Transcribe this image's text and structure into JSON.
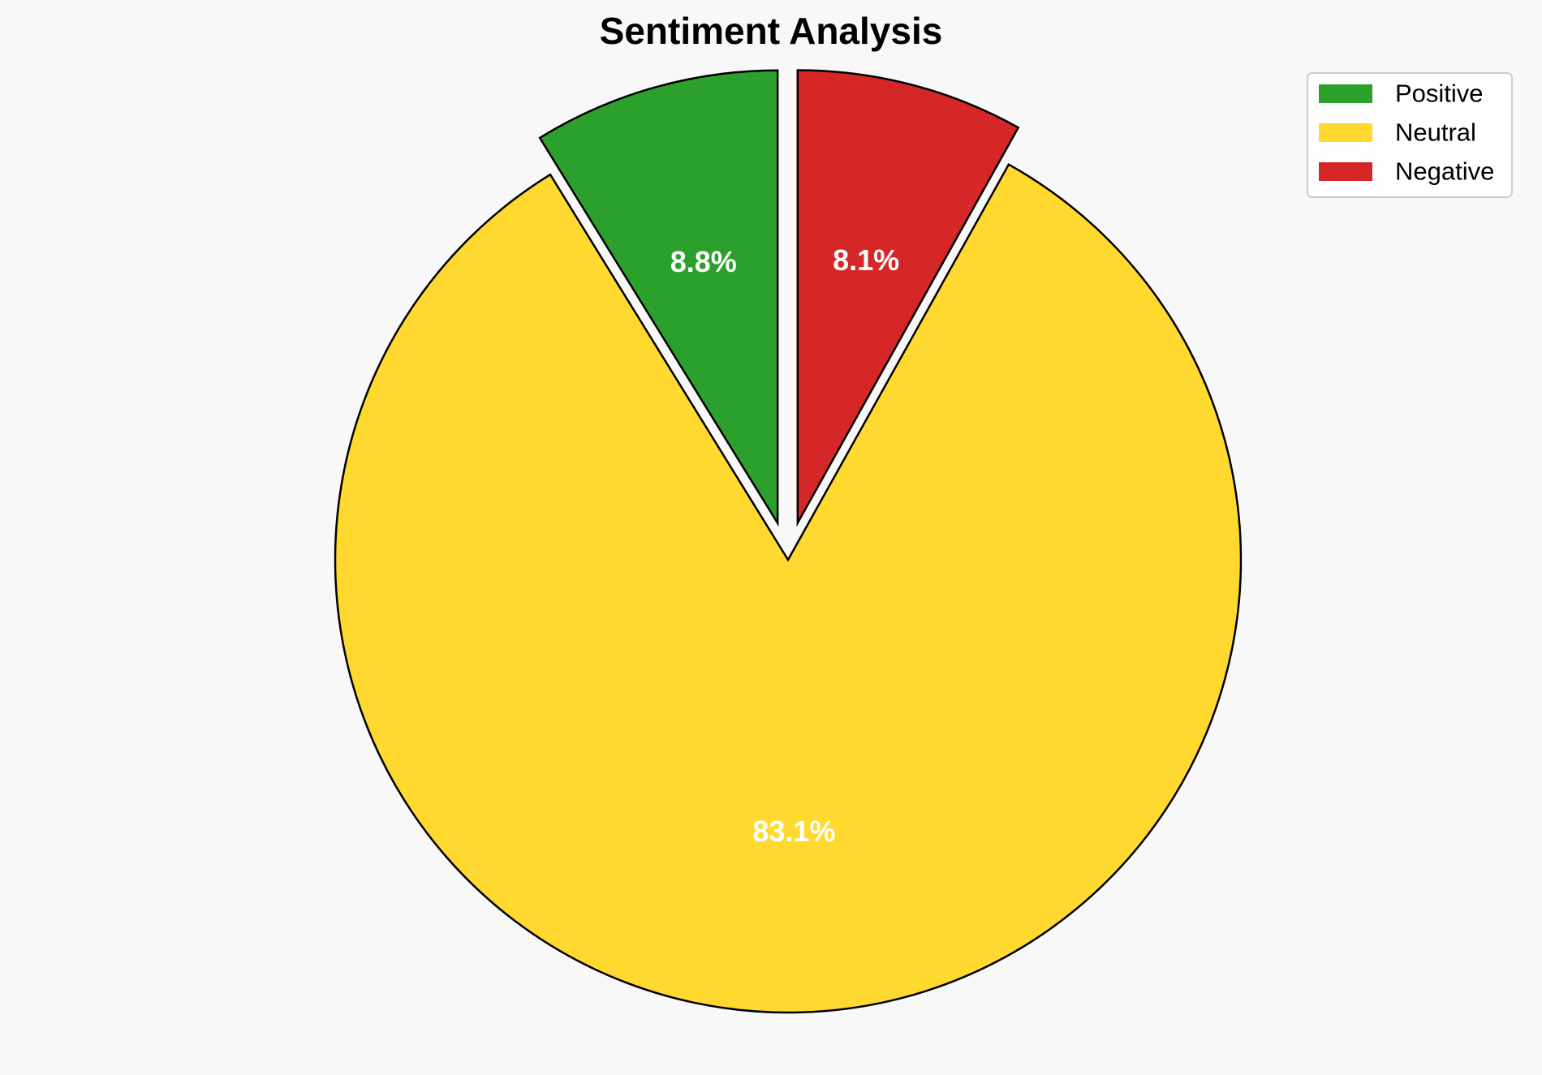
{
  "chart_data": {
    "type": "pie",
    "title": "Sentiment Analysis",
    "start_angle_deg": 90,
    "direction": "counterclockwise",
    "legend_position": "top-right",
    "slices": [
      {
        "label": "Positive",
        "value": 8.8,
        "display": "8.8%",
        "color": "#2ca02c",
        "exploded": true
      },
      {
        "label": "Neutral",
        "value": 83.1,
        "display": "83.1%",
        "color": "#ffd92f",
        "exploded": false
      },
      {
        "label": "Negative",
        "value": 8.1,
        "display": "8.1%",
        "color": "#d62728",
        "exploded": true
      }
    ]
  }
}
